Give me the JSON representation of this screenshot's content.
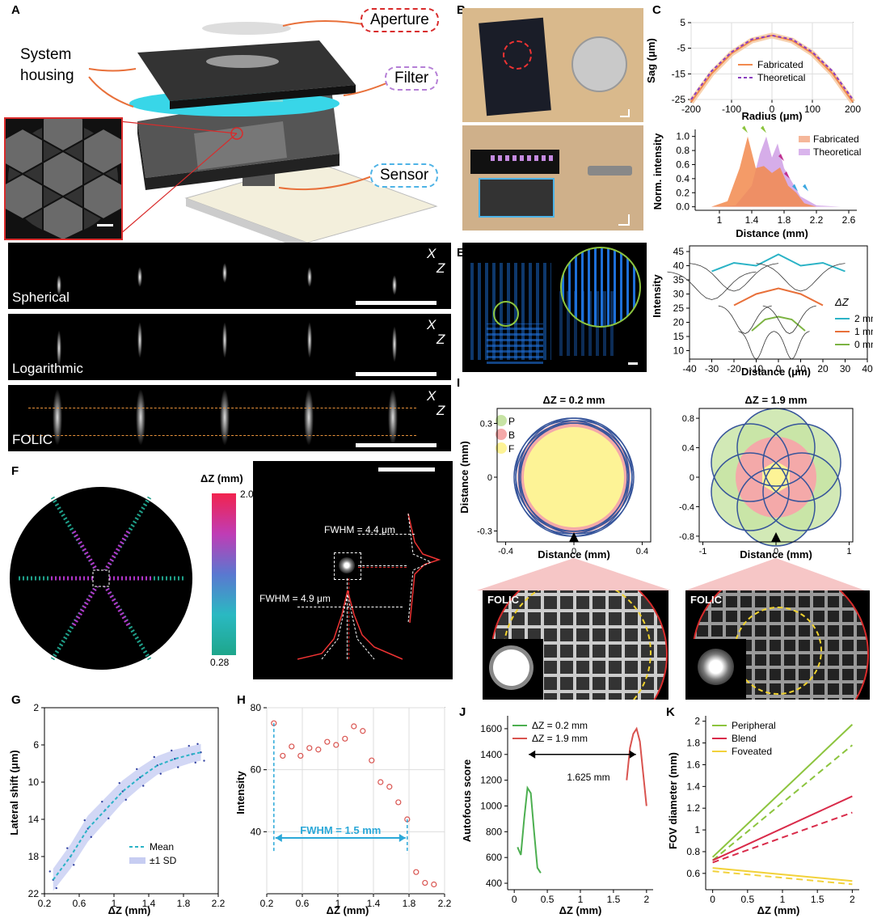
{
  "panels": {
    "A": "A",
    "B": "B",
    "C": "C",
    "D": "D",
    "E": "E",
    "F": "F",
    "G": "G",
    "H": "H",
    "I": "I",
    "J": "J",
    "K": "K"
  },
  "panelA": {
    "aperture": "Aperture",
    "system_housing": "System housing",
    "filter": "Filter",
    "sensor": "Sensor"
  },
  "panelD": {
    "spherical": "Spherical",
    "logarithmic": "Logarithmic",
    "folic": "FOLIC",
    "x": "X",
    "z": "Z"
  },
  "panelE": {
    "dz": "ΔZ"
  },
  "panelF": {
    "cbar_title": "ΔZ (mm)",
    "cbar_max": "2.08",
    "cbar_min": "0.28",
    "fwhm1": "FWHM = 4.4 μm",
    "fwhm2": "FWHM = 4.9 μm"
  },
  "panelH": {
    "fwhm": "FWHM = 1.5 mm"
  },
  "panelI": {
    "title1": "ΔZ = 0.2 mm",
    "title2": "ΔZ = 1.9 mm",
    "legend": [
      "P",
      "B",
      "F"
    ],
    "ylabel": "Distance (mm)",
    "xlabel": "Distance (mm)",
    "folic": "FOLIC"
  },
  "panelJ": {
    "gap": "1.625 mm"
  },
  "colors": {
    "orange_arrow": "#e8703a",
    "aperture_border": "#d92b2b",
    "filter_border": "#b57fd6",
    "sensor_border": "#4eb3e6",
    "teal": "#2bb3c6",
    "fabricated_orange": "#f28a4e",
    "theoretical_purple": "#c48ae0",
    "h_circles": "#d9534f",
    "j_green": "#4caf50",
    "j_red": "#d9534f",
    "k_yellow": "#f2d23c"
  },
  "chart_data": [
    {
      "id": "C-top",
      "type": "line",
      "xlabel": "Radius (μm)",
      "ylabel": "Sag (μm)",
      "xlim": [
        -200,
        200
      ],
      "ylim": [
        -25,
        5
      ],
      "xticks": [
        -200,
        -100,
        0,
        100,
        200
      ],
      "yticks": [
        5,
        -5,
        -15,
        -25
      ],
      "series": [
        {
          "name": "Fabricated",
          "x": [
            -200,
            -150,
            -100,
            -50,
            0,
            50,
            100,
            150,
            200
          ],
          "y": [
            -26,
            -15,
            -7,
            -2,
            0,
            -2,
            -7,
            -15,
            -26
          ]
        },
        {
          "name": "Theoretical",
          "x": [
            -200,
            -150,
            -100,
            -50,
            0,
            50,
            100,
            150,
            200
          ],
          "y": [
            -25,
            -14,
            -6.5,
            -1.5,
            0,
            -1.5,
            -6.5,
            -14,
            -25
          ]
        }
      ]
    },
    {
      "id": "C-bottom",
      "type": "area",
      "xlabel": "Distance (mm)",
      "ylabel": "Norm. intensity",
      "xlim": [
        0.7,
        2.7
      ],
      "ylim": [
        -0.05,
        1.1
      ],
      "xticks": [
        1,
        1.4,
        1.8,
        2.2,
        2.6
      ],
      "yticks": [
        0.0,
        0.2,
        0.4,
        0.6,
        0.8,
        1.0
      ],
      "series": [
        {
          "name": "Fabricated",
          "x": [
            0.9,
            1.1,
            1.25,
            1.35,
            1.45,
            1.55,
            1.65,
            1.75,
            1.85,
            1.95,
            2.05,
            2.2
          ],
          "y": [
            0,
            0.08,
            0.55,
            1.0,
            0.55,
            0.58,
            0.48,
            0.56,
            0.3,
            0.2,
            0.05,
            0
          ]
        },
        {
          "name": "Theoretical",
          "x": [
            0.9,
            1.2,
            1.4,
            1.5,
            1.58,
            1.65,
            1.72,
            1.8,
            1.9,
            2.0,
            2.2,
            2.5
          ],
          "y": [
            0,
            0.02,
            0.3,
            0.75,
            1.0,
            0.7,
            0.9,
            0.55,
            0.35,
            0.15,
            0.02,
            0
          ]
        }
      ]
    },
    {
      "id": "E-right",
      "type": "line",
      "xlabel": "Distance (μm)",
      "ylabel": "Intensity",
      "xlim": [
        -40,
        40
      ],
      "ylim": [
        7,
        47
      ],
      "xticks": [
        -40,
        -30,
        -20,
        -10,
        0,
        10,
        20,
        30,
        40
      ],
      "yticks": [
        10,
        15,
        20,
        25,
        30,
        35,
        40,
        45
      ],
      "series": [
        {
          "name": "2 mm",
          "x": [
            -30,
            -20,
            -10,
            0,
            10,
            20,
            30
          ],
          "y": [
            38,
            41,
            40,
            44,
            40,
            41,
            38
          ]
        },
        {
          "name": "1 mm",
          "x": [
            -20,
            -10,
            0,
            10,
            20
          ],
          "y": [
            26,
            30,
            32,
            30,
            26
          ]
        },
        {
          "name": "0 mm",
          "x": [
            -12,
            -6,
            0,
            6,
            12
          ],
          "y": [
            17,
            21,
            22,
            21,
            17
          ]
        }
      ]
    },
    {
      "id": "G",
      "type": "scatter",
      "xlabel": "ΔZ (mm)",
      "ylabel": "Lateral shift (μm)",
      "xlim": [
        0.2,
        2.2
      ],
      "ylim": [
        22,
        2
      ],
      "xticks": [
        0.2,
        0.6,
        1,
        1.4,
        1.8,
        2.2
      ],
      "yticks": [
        2,
        6,
        10,
        14,
        18,
        22
      ],
      "series": [
        {
          "name": "Mean",
          "x": [
            0.3,
            0.5,
            0.7,
            0.9,
            1.1,
            1.3,
            1.5,
            1.7,
            1.9,
            2.0
          ],
          "y": [
            20.5,
            18,
            15,
            13,
            11,
            9.5,
            8.2,
            7.5,
            7,
            6.8
          ]
        },
        {
          "name": "±1 SD",
          "x": [
            0.3,
            0.5,
            0.7,
            0.9,
            1.1,
            1.3,
            1.5,
            1.7,
            1.9,
            2.0
          ],
          "y": [
            1.2,
            1.3,
            1.4,
            1.3,
            1.2,
            1.1,
            1.0,
            1.0,
            0.9,
            0.9
          ]
        }
      ]
    },
    {
      "id": "H",
      "type": "scatter",
      "xlabel": "ΔZ (mm)",
      "ylabel": "Intensity",
      "xlim": [
        0.2,
        2.2
      ],
      "ylim": [
        20,
        80
      ],
      "xticks": [
        0.2,
        0.6,
        1,
        1.4,
        1.8,
        2.2
      ],
      "yticks": [
        40,
        60,
        80
      ],
      "series": [
        {
          "name": "",
          "x": [
            0.28,
            0.38,
            0.48,
            0.58,
            0.68,
            0.78,
            0.88,
            0.98,
            1.08,
            1.18,
            1.28,
            1.38,
            1.48,
            1.58,
            1.68,
            1.78,
            1.88,
            1.98,
            2.08
          ],
          "y": [
            75,
            64.5,
            67.5,
            64.5,
            67,
            66.5,
            69,
            68,
            70,
            74,
            72.5,
            63,
            56,
            54.5,
            49.5,
            44,
            27,
            23.5,
            23
          ]
        }
      ]
    },
    {
      "id": "J",
      "type": "line",
      "xlabel": "ΔZ (mm)",
      "ylabel": "Autofocus score",
      "xlim": [
        -0.1,
        2.1
      ],
      "ylim": [
        350,
        1700
      ],
      "xticks": [
        0,
        0.5,
        1,
        1.5,
        2
      ],
      "yticks": [
        400,
        600,
        800,
        1000,
        1200,
        1400,
        1600
      ],
      "series": [
        {
          "name": "ΔZ = 0.2 mm",
          "x": [
            0.05,
            0.1,
            0.15,
            0.2,
            0.25,
            0.3,
            0.35,
            0.4
          ],
          "y": [
            680,
            620,
            900,
            1140,
            1100,
            800,
            520,
            480
          ]
        },
        {
          "name": "ΔZ = 1.9 mm",
          "x": [
            1.7,
            1.75,
            1.8,
            1.85,
            1.9,
            1.95,
            2.0
          ],
          "y": [
            1200,
            1450,
            1560,
            1600,
            1500,
            1250,
            1000
          ]
        }
      ]
    },
    {
      "id": "K",
      "type": "line",
      "xlabel": "ΔZ (mm)",
      "ylabel": "FOV diameter (mm)",
      "xlim": [
        -0.1,
        2.1
      ],
      "ylim": [
        0.45,
        2.05
      ],
      "xticks": [
        0,
        0.5,
        1,
        1.5,
        2
      ],
      "yticks": [
        0.6,
        0.8,
        1,
        1.2,
        1.4,
        1.6,
        1.8,
        2
      ],
      "series": [
        {
          "name": "Peripheral",
          "x": [
            0,
            2
          ],
          "y": [
            0.75,
            1.97
          ]
        },
        {
          "name": "Blend",
          "x": [
            0,
            2
          ],
          "y": [
            0.72,
            1.31
          ]
        },
        {
          "name": "Foveated",
          "x": [
            0,
            2
          ],
          "y": [
            0.65,
            0.53
          ]
        }
      ]
    }
  ]
}
